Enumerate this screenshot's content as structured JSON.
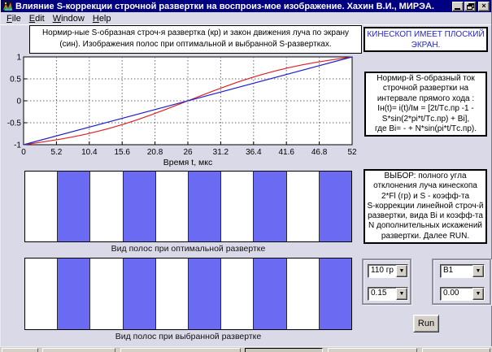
{
  "window": {
    "title": "Влияние S-коррекции строчной развертки на воспроиз-мое изображение. Хахин В.И., МИРЭА.",
    "close_glyph": "×"
  },
  "menu": {
    "items": [
      {
        "label": "File"
      },
      {
        "label": "Edit"
      },
      {
        "label": "Window"
      },
      {
        "label": "Help"
      }
    ]
  },
  "texts": {
    "instruction": "Нормир-ные S-образная  строч-я развертка (кр) и закон движения луча по экрану\n(син). Изображения полос при оптимальной и выбранной S-развертках.",
    "flat_screen_note": "КИНЕСКОП ИМЕЕТ ПЛОСКИЙ\nЭКРАН.",
    "formula": "Нормир-й S-образный ток\nстрочной развертки на\nинтервале прямого хода :\nIн(t)= i(t)/Iм = [2t/Tс.пр -1 -\nS*sin(2*pi*t/Tс.пр) + Bi],\nгде Bi= - + N*sin(pi*t/Tс.пр).",
    "selection_note": "ВЫБОР: полного угла\nотклонения луча кинескопа\n2*Fl (гр) и S - коэфф-та\nS-коррекции линейной строч-й\nразвертки, вида Bi и коэфф-та\nN дополнительных искажений\nразвертки. Далее RUN."
  },
  "chart_data": {
    "type": "line",
    "title": "",
    "xlabel": "Время t, мкс",
    "ylabel": "",
    "xlim": [
      0,
      52
    ],
    "ylim": [
      -1,
      1
    ],
    "grid": true,
    "legend_position": "none",
    "xticks": [
      0,
      5.2,
      10.4,
      15.6,
      20.8,
      26,
      31.2,
      36.4,
      41.6,
      46.8,
      52
    ],
    "xtick_labels": [
      "0",
      "5.2",
      "10.4",
      "15.6",
      "20.8",
      "26",
      "31.2",
      "36.4",
      "41.6",
      "46.8",
      "52"
    ],
    "yticks": [
      -1,
      -0.5,
      0,
      0.5,
      1
    ],
    "ytick_labels": [
      "-1",
      "-0.5",
      "0",
      "0.5",
      "1"
    ],
    "series": [
      {
        "name": "S-образная строчная развертка (кр)",
        "color": "#dd2222",
        "x": [
          0,
          2,
          4,
          6,
          8,
          10,
          12,
          14,
          16,
          18,
          20,
          22,
          24,
          26,
          28,
          30,
          32,
          34,
          36,
          38,
          40,
          42,
          44,
          46,
          48,
          50,
          52
        ],
        "y": [
          -1,
          -0.959,
          -0.916,
          -0.869,
          -0.816,
          -0.756,
          -0.687,
          -0.61,
          -0.525,
          -0.431,
          -0.33,
          -0.224,
          -0.113,
          0,
          0.113,
          0.224,
          0.33,
          0.431,
          0.525,
          0.61,
          0.687,
          0.756,
          0.816,
          0.869,
          0.916,
          0.959,
          1
        ]
      },
      {
        "name": "закон движения луча по экрану (син)",
        "color": "#2222cc",
        "x": [
          0,
          52
        ],
        "y": [
          -1,
          1
        ]
      }
    ]
  },
  "panels": {
    "optimal": {
      "label": "Вид полос при оптимальной развертке",
      "stripes": [
        "white",
        "blue",
        "white",
        "blue",
        "white",
        "blue",
        "white",
        "blue",
        "white",
        "blue"
      ]
    },
    "chosen": {
      "label": "Вид полос при выбранной развертке",
      "stripes": [
        "white",
        "blue",
        "white",
        "blue",
        "white",
        "blue",
        "white",
        "blue",
        "white",
        "blue"
      ]
    }
  },
  "controls": {
    "angle_value": "110 гр",
    "s_value": "0.15",
    "bi_value": "B1",
    "n_value": "0.00",
    "run_label": "Run",
    "arrow_glyph": "▼"
  },
  "colors": {
    "titlebar": "#000080",
    "stripe_blue": "#6a6af2",
    "note_blue": "#2424c8",
    "series_red": "#dd2222",
    "series_blue": "#2222cc"
  }
}
